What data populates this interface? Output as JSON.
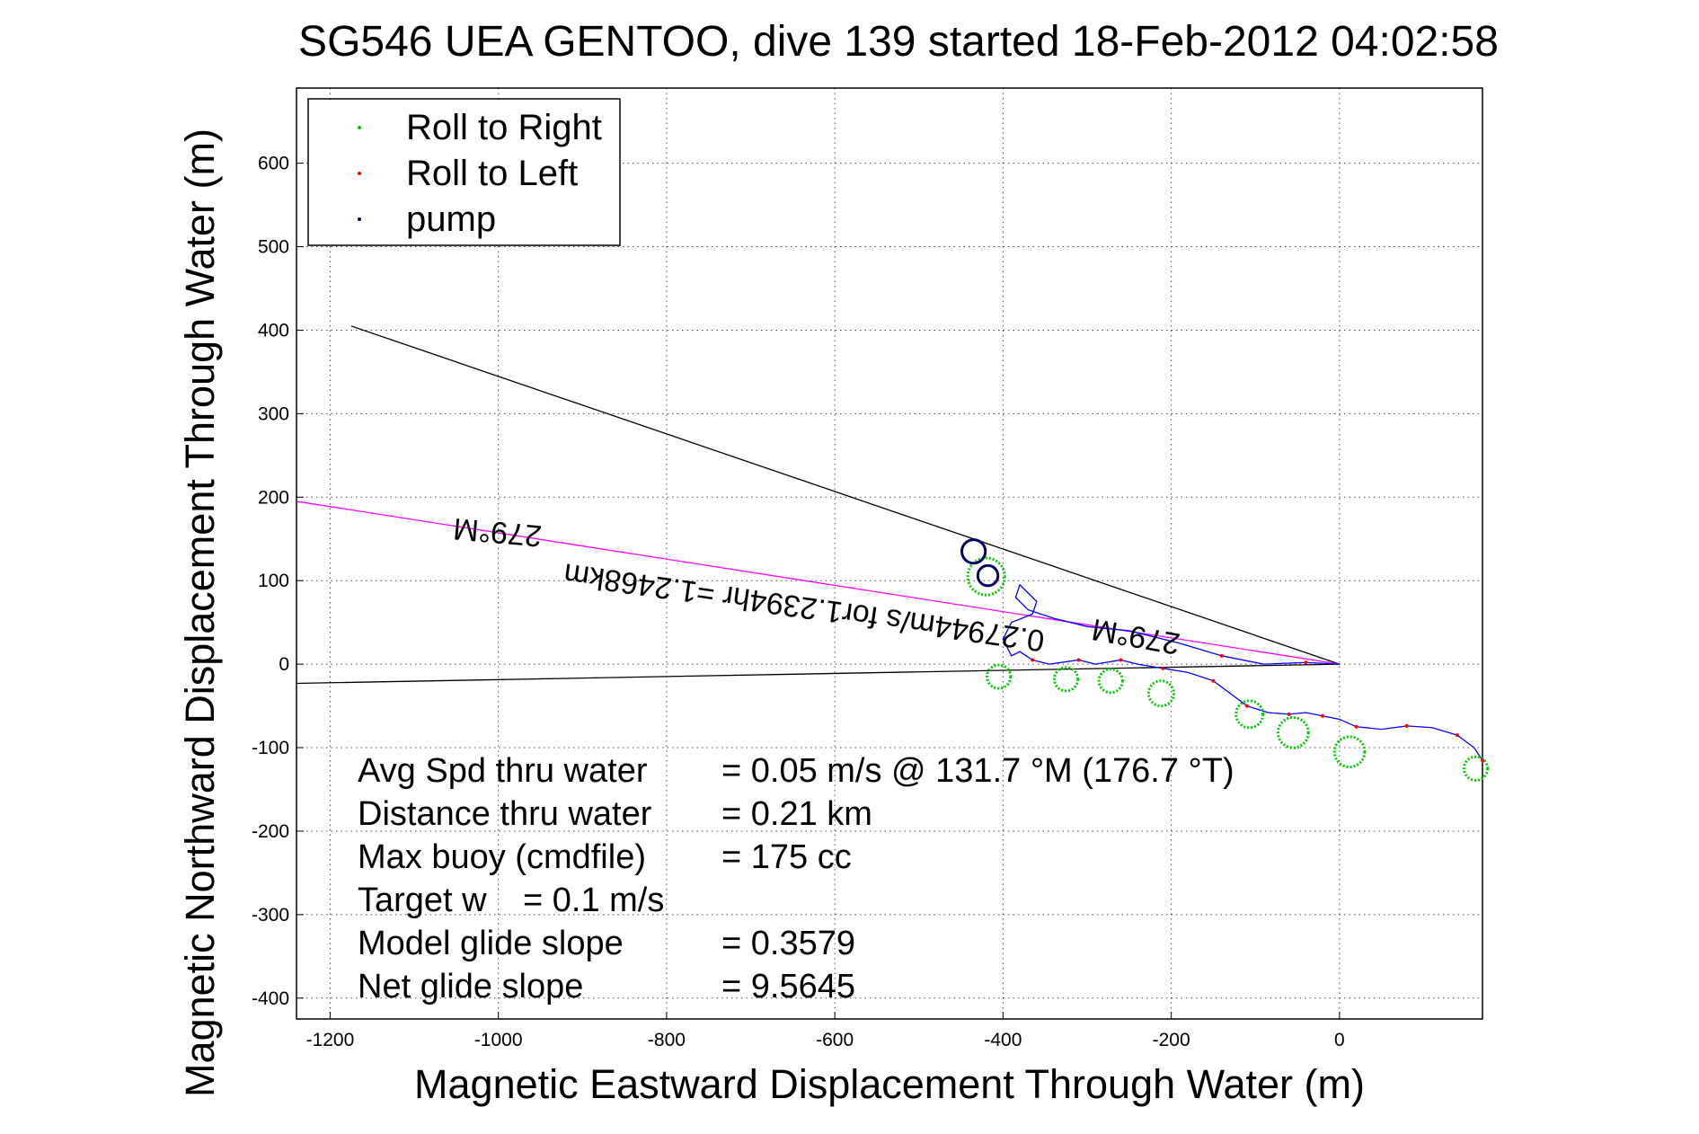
{
  "chart_data": {
    "type": "line",
    "title": "SG546 UEA GENTOO, dive 139 started 18-Feb-2012 04:02:58",
    "xlabel": "Magnetic Eastward Displacement Through Water (m)",
    "ylabel": "Magnetic Northward Displacement Through Water (m)",
    "xlim": [
      -1240,
      170
    ],
    "ylim": [
      -425,
      690
    ],
    "xticks": [
      -1200,
      -1000,
      -800,
      -600,
      -400,
      -200,
      0
    ],
    "yticks": [
      -400,
      -300,
      -200,
      -100,
      0,
      100,
      200,
      300,
      400,
      500,
      600
    ],
    "grid": true,
    "legend": {
      "position": "top-left",
      "entries": [
        {
          "label": "Roll to Right",
          "color": "#00cc00"
        },
        {
          "label": "Roll to Left",
          "color": "#ff0000"
        },
        {
          "label": "pump",
          "color": "#000066"
        }
      ]
    },
    "reference_lines": [
      {
        "name": "upper-bound-line",
        "color": "#000000",
        "x": [
          0,
          -1175
        ],
        "y": [
          0,
          405
        ]
      },
      {
        "name": "lower-bound-line",
        "color": "#000000",
        "x": [
          0,
          -1240
        ],
        "y": [
          0,
          -23
        ]
      },
      {
        "name": "heading-line",
        "color": "#ff00ff",
        "x": [
          0,
          -1240
        ],
        "y": [
          0,
          195
        ]
      }
    ],
    "annotations": [
      {
        "text": "279°M",
        "x": -1000,
        "y": 170,
        "rotate_deg": 185
      },
      {
        "text": "279°M",
        "x": -240,
        "y": 45,
        "rotate_deg": 190
      },
      {
        "text": "0.27944m/s for1.2394hr =1.2468km",
        "x": -635,
        "y": 80,
        "rotate_deg": 188
      }
    ],
    "track": {
      "color": "#0000ff",
      "points": [
        [
          0,
          0
        ],
        [
          -40,
          2
        ],
        [
          -90,
          0
        ],
        [
          -140,
          10
        ],
        [
          -190,
          25
        ],
        [
          -250,
          40
        ],
        [
          -300,
          45
        ],
        [
          -340,
          55
        ],
        [
          -370,
          65
        ],
        [
          -385,
          80
        ],
        [
          -380,
          95
        ],
        [
          -360,
          75
        ],
        [
          -365,
          60
        ],
        [
          -390,
          50
        ],
        [
          -400,
          30
        ],
        [
          -390,
          10
        ],
        [
          -380,
          15
        ],
        [
          -365,
          5
        ],
        [
          -345,
          0
        ],
        [
          -310,
          5
        ],
        [
          -290,
          0
        ],
        [
          -260,
          5
        ],
        [
          -240,
          0
        ],
        [
          -210,
          -5
        ],
        [
          -180,
          -10
        ],
        [
          -150,
          -20
        ],
        [
          -130,
          -35
        ],
        [
          -110,
          -50
        ],
        [
          -85,
          -58
        ],
        [
          -60,
          -60
        ],
        [
          -40,
          -58
        ],
        [
          -20,
          -62
        ],
        [
          0,
          -66
        ],
        [
          20,
          -75
        ],
        [
          50,
          -78
        ],
        [
          80,
          -74
        ],
        [
          110,
          -76
        ],
        [
          140,
          -85
        ],
        [
          160,
          -100
        ],
        [
          170,
          -115
        ]
      ]
    },
    "roll_right_arcs": [
      {
        "cx": -405,
        "cy": -15,
        "r": 14
      },
      {
        "cx": -325,
        "cy": -18,
        "r": 14
      },
      {
        "cx": -272,
        "cy": -20,
        "r": 14
      },
      {
        "cx": -212,
        "cy": -35,
        "r": 15
      },
      {
        "cx": -107,
        "cy": -60,
        "r": 16
      },
      {
        "cx": -55,
        "cy": -82,
        "r": 18
      },
      {
        "cx": 12,
        "cy": -105,
        "r": 18
      },
      {
        "cx": 162,
        "cy": -125,
        "r": 14
      },
      {
        "cx": -420,
        "cy": 105,
        "r": 22
      }
    ],
    "pump_loops": [
      {
        "cx": -435,
        "cy": 135,
        "r": 14
      },
      {
        "cx": -418,
        "cy": 106,
        "r": 12
      }
    ],
    "stats": [
      {
        "label": "Avg Spd thru water",
        "value": "=  0.05 m/s @ 131.7 °M (176.7 °T)"
      },
      {
        "label": "Distance thru water",
        "value": "=  0.21 km"
      },
      {
        "label": "Max buoy (cmdfile)",
        "value": "= 175 cc"
      },
      {
        "label": "Target w",
        "value": "= 0.1 m/s"
      },
      {
        "label": "Model glide slope",
        "value": "= 0.3579"
      },
      {
        "label": "Net glide slope",
        "value": "= 9.5645"
      }
    ]
  }
}
